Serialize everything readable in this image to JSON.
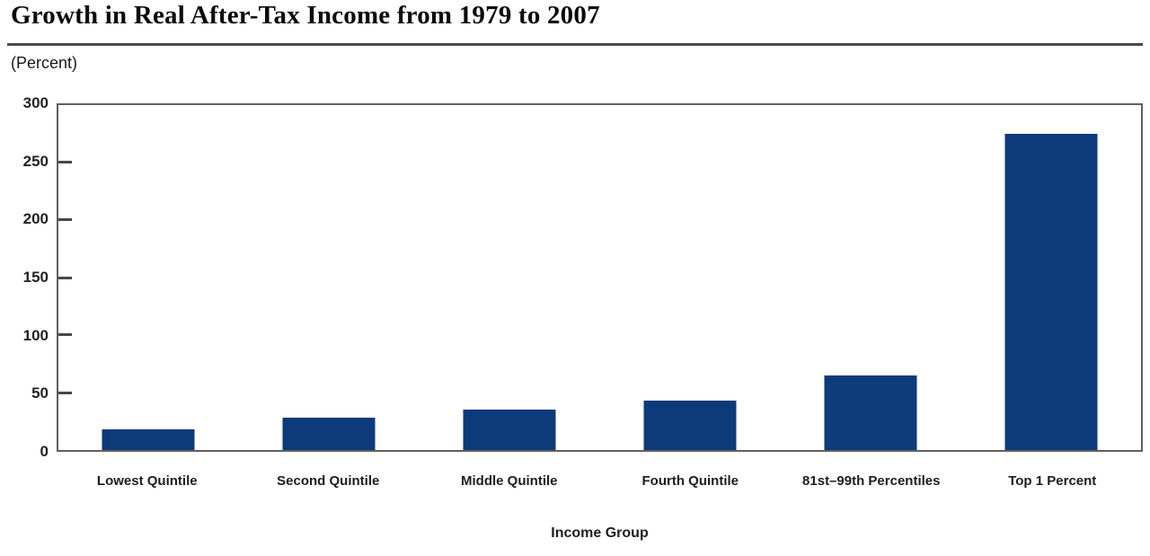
{
  "figure": {
    "title": "Growth in Real After-Tax Income from 1979 to 2007",
    "unit_label": "(Percent)"
  },
  "chart_data": {
    "type": "bar",
    "title": "Growth in Real After-Tax Income from 1979 to 2007",
    "subtitle": "(Percent)",
    "categories": [
      "Lowest Quintile",
      "Second Quintile",
      "Middle Quintile",
      "Fourth Quintile",
      "81st–99th Percentiles",
      "Top 1 Percent"
    ],
    "values": [
      18,
      28,
      35,
      43,
      65,
      275
    ],
    "xlabel": "Income Group",
    "ylabel": "(Percent)",
    "ylim": [
      0,
      300
    ],
    "yticks": [
      0,
      50,
      100,
      150,
      200,
      250,
      300
    ],
    "grid": false,
    "legend": "none",
    "bar_color": "#0d3a7a"
  },
  "colors": {
    "bar": "#0d3a7a",
    "frame": "#606060",
    "tick_mark": "#474747",
    "title_rule": "#4a4a4a",
    "text": "#1a1a1a"
  }
}
